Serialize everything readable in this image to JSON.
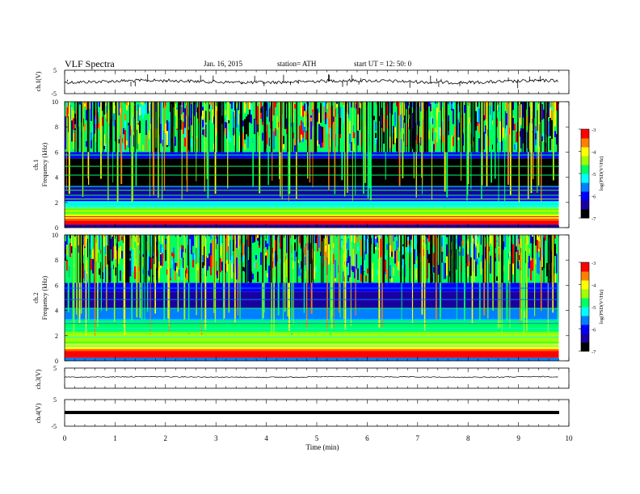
{
  "header": {
    "title": "VLF  Spectra",
    "date": "Jan. 16, 2015",
    "station": "station= ATH",
    "start": "start  UT =   12: 50: 0"
  },
  "colors": {
    "colormap": [
      "#000000",
      "#1a00a0",
      "#0000ff",
      "#0080ff",
      "#00ffff",
      "#00ff60",
      "#a0ff00",
      "#ffff00",
      "#ff8000",
      "#ff0000",
      "#ffffff"
    ],
    "trace": "#000000"
  },
  "chart_data": [
    {
      "type": "line",
      "panel": "ch1-waveform",
      "ylabel": "ch.1(V)",
      "ylim": [
        -5,
        5
      ],
      "yticks": [
        "5",
        "-5"
      ],
      "x": [
        0,
        1,
        2,
        3,
        4,
        5,
        6,
        7,
        8,
        9,
        9.8
      ],
      "series": [
        {
          "values": [
            0,
            0.2,
            -0.1,
            0.1,
            0,
            -0.2,
            0.1,
            0,
            -0.1,
            0.1,
            0
          ]
        }
      ]
    },
    {
      "type": "heatmap",
      "panel": "ch1-spectrogram",
      "ylabel": "Frequency  (kHz)",
      "channel_label": "ch.1",
      "ylim": [
        0,
        10
      ],
      "yticks": [
        "0",
        "2",
        "4",
        "6",
        "8",
        "10"
      ],
      "xlim": [
        0,
        9.8
      ],
      "colorbar": {
        "label": "log(PSD(V²/Hz)",
        "range": [
          -7,
          -3
        ],
        "ticks": [
          "-3",
          "-4",
          "-5",
          "-6",
          "-7"
        ]
      },
      "bands_khz_logpsd": [
        [
          0,
          0.25,
          -6.5
        ],
        [
          0.25,
          0.6,
          -3.2
        ],
        [
          0.6,
          1.0,
          -4.2
        ],
        [
          1.0,
          1.6,
          -4.6
        ],
        [
          1.6,
          2.1,
          -5.2
        ],
        [
          2.1,
          2.5,
          -6.0
        ],
        [
          2.5,
          3.3,
          -6.6
        ],
        [
          3.3,
          5.5,
          -6.8
        ],
        [
          5.5,
          6.0,
          -6.0
        ],
        [
          6.0,
          10.0,
          -4.8
        ]
      ]
    },
    {
      "type": "heatmap",
      "panel": "ch2-spectrogram",
      "ylabel": "Frequency  (kHz)",
      "channel_label": "ch.2",
      "ylim": [
        0,
        10
      ],
      "yticks": [
        "0",
        "2",
        "4",
        "6",
        "8",
        "10"
      ],
      "xlim": [
        0,
        9.8
      ],
      "colorbar": {
        "label": "log(PSD(V²/Hz)",
        "range": [
          -7,
          -3
        ],
        "ticks": [
          "-3",
          "-4",
          "-5",
          "-6",
          "-7"
        ]
      },
      "bands_khz_logpsd": [
        [
          0,
          0.3,
          -5.5
        ],
        [
          0.3,
          0.8,
          -3.4
        ],
        [
          0.8,
          1.3,
          -4.0
        ],
        [
          1.3,
          2.2,
          -4.6
        ],
        [
          2.2,
          3.2,
          -5.0
        ],
        [
          3.2,
          4.2,
          -5.6
        ],
        [
          4.2,
          5.5,
          -6.3
        ],
        [
          5.5,
          6.2,
          -6.0
        ],
        [
          6.2,
          10.0,
          -4.7
        ]
      ]
    },
    {
      "type": "line",
      "panel": "ch3-waveform",
      "ylabel": "ch.3(V)",
      "ylim": [
        -5,
        5
      ],
      "yticks": [
        "5",
        "-5"
      ],
      "x": [
        0,
        9.8
      ],
      "series": [
        {
          "values": [
            0,
            0
          ]
        }
      ]
    },
    {
      "type": "line",
      "panel": "ch4-waveform",
      "ylabel": "ch.4(V)",
      "ylim": [
        -5,
        5
      ],
      "yticks": [
        "5",
        "-5"
      ],
      "x": [
        0,
        9.8
      ],
      "series": [
        {
          "values": [
            0,
            0
          ]
        }
      ]
    }
  ],
  "xaxis": {
    "label": "Time  (min)",
    "xlim": [
      0,
      10
    ],
    "ticks": [
      "0",
      "1",
      "2",
      "3",
      "4",
      "5",
      "6",
      "7",
      "8",
      "9",
      "10"
    ]
  }
}
